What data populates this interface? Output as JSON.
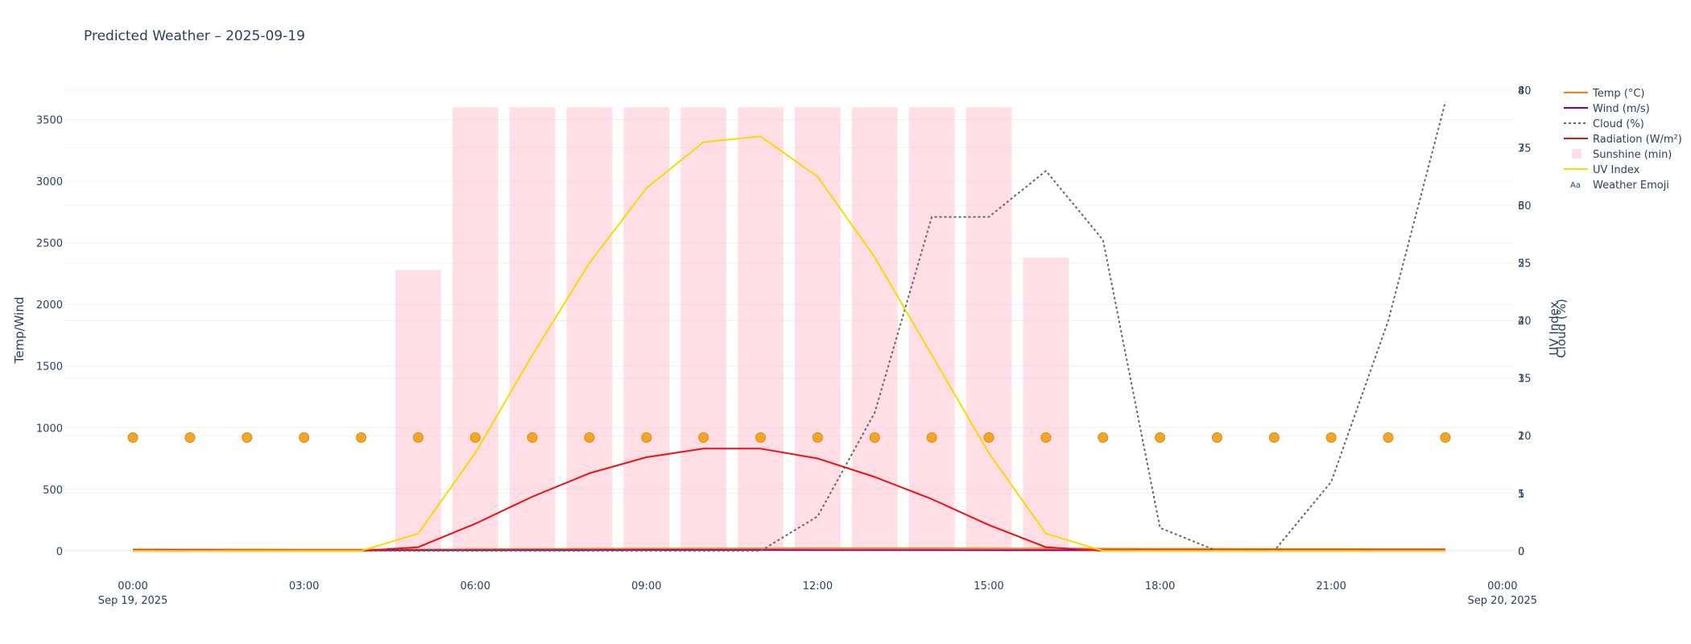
{
  "chart_data": {
    "type": "line",
    "title": "Predicted Weather – 2025-09-19",
    "x_hours": [
      0,
      1,
      2,
      3,
      4,
      5,
      6,
      7,
      8,
      9,
      10,
      11,
      12,
      13,
      14,
      15,
      16,
      17,
      18,
      19,
      20,
      21,
      22,
      23
    ],
    "x_ticks": [
      {
        "hour": 0,
        "line1": "00:00",
        "line2": "Sep 19, 2025"
      },
      {
        "hour": 3,
        "line1": "03:00",
        "line2": ""
      },
      {
        "hour": 6,
        "line1": "06:00",
        "line2": ""
      },
      {
        "hour": 9,
        "line1": "09:00",
        "line2": ""
      },
      {
        "hour": 12,
        "line1": "12:00",
        "line2": ""
      },
      {
        "hour": 15,
        "line1": "15:00",
        "line2": ""
      },
      {
        "hour": 18,
        "line1": "18:00",
        "line2": ""
      },
      {
        "hour": 21,
        "line1": "21:00",
        "line2": ""
      },
      {
        "hour": 24,
        "line1": "00:00",
        "line2": "Sep 20, 2025"
      }
    ],
    "x_range_hours": [
      -1.2,
      24.2
    ],
    "y_left": {
      "label": "Temp/Wind",
      "range": [
        -70,
        3720
      ],
      "ticks": [
        "0",
        "500",
        "1000",
        "1500",
        "2000",
        "2500",
        "3000",
        "3500"
      ]
    },
    "y_cloud": {
      "label": "Cloud (%)",
      "range": [
        -0.75,
        39.8
      ],
      "ticks": [
        "0",
        "5",
        "10",
        "15",
        "20",
        "25",
        "30",
        "35",
        "40"
      ]
    },
    "y_uv": {
      "label": "UV Index",
      "range": [
        -0.15,
        7.96
      ],
      "ticks": [
        "0",
        "1",
        "2",
        "3",
        "4",
        "5",
        "6",
        "7",
        "8"
      ]
    },
    "series": [
      {
        "name": "Temp (°C)",
        "axis": "left",
        "color": "#ff7f0e",
        "style": "line",
        "values": [
          12,
          11,
          11,
          10,
          10,
          11,
          13,
          15,
          17,
          18,
          19,
          20,
          21,
          21,
          21,
          20,
          19,
          18,
          17,
          16,
          15,
          15,
          14,
          14
        ]
      },
      {
        "name": "Wind (m/s)",
        "axis": "left",
        "color": "#800080",
        "style": "line",
        "values": [
          5,
          5,
          4,
          4,
          4,
          5,
          5,
          6,
          6,
          7,
          7,
          7,
          6,
          6,
          6,
          5,
          5,
          5,
          5,
          5,
          5,
          5,
          5,
          5
        ]
      },
      {
        "name": "Cloud (%)",
        "axis": "cloud",
        "color": "#666666",
        "style": "dotted",
        "values": [
          0,
          0,
          0,
          0,
          0,
          0,
          0,
          0,
          0,
          0,
          0,
          0,
          3,
          12,
          29,
          29,
          33,
          27,
          2,
          0,
          0,
          6,
          20,
          39
        ]
      },
      {
        "name": "Radiation (W/m²)",
        "axis": "left",
        "color": "#ee1111",
        "style": "line",
        "values": [
          0,
          0,
          0,
          0,
          0,
          30,
          220,
          440,
          630,
          760,
          830,
          830,
          750,
          600,
          420,
          210,
          30,
          0,
          0,
          0,
          0,
          0,
          0,
          0
        ]
      },
      {
        "name": "Sunshine (min)",
        "axis": "left",
        "color": "#ffc0cb",
        "style": "bar",
        "values": [
          0,
          0,
          0,
          0,
          0,
          2280,
          3600,
          3600,
          3600,
          3600,
          3600,
          3600,
          3600,
          3600,
          3600,
          3600,
          2380,
          0,
          0,
          0,
          0,
          0,
          0,
          0
        ]
      },
      {
        "name": "UV Index",
        "axis": "uv",
        "color": "#ffd700",
        "style": "line",
        "values": [
          0,
          0,
          0,
          0,
          0,
          0.3,
          1.7,
          3.4,
          5.0,
          6.3,
          7.1,
          7.2,
          6.5,
          5.1,
          3.4,
          1.7,
          0.3,
          0,
          0,
          0,
          0,
          0,
          0,
          0
        ]
      },
      {
        "name": "Weather Emoji",
        "axis": "left",
        "color": "#f5a623",
        "style": "marker",
        "values": [
          920,
          920,
          920,
          920,
          920,
          920,
          920,
          920,
          920,
          920,
          920,
          920,
          920,
          920,
          920,
          920,
          920,
          920,
          920,
          920,
          920,
          920,
          920,
          920
        ]
      }
    ],
    "legend": {
      "placement": "top-right",
      "emoji_symbol": "Aa"
    },
    "grid": true
  }
}
